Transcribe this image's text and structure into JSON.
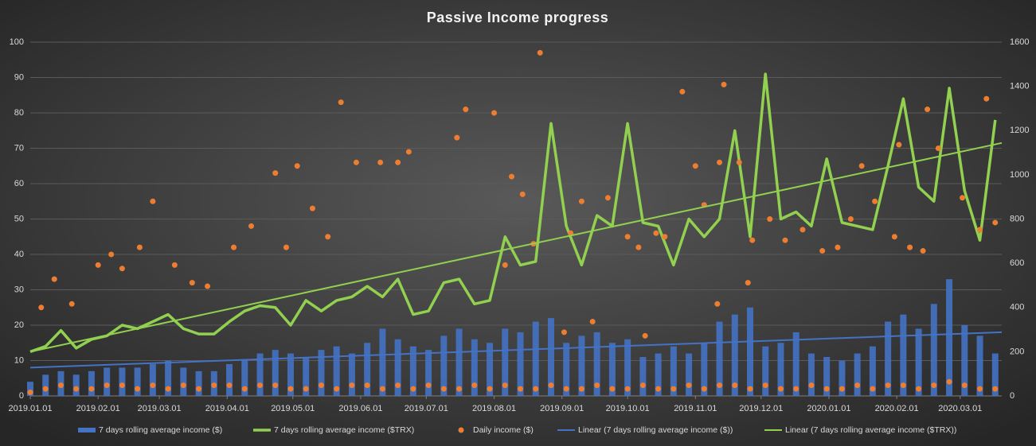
{
  "chart_data": {
    "type": "combo",
    "title": "Passive  Income  progress",
    "xlim": [
      "2019.01.01",
      "2020.03.20"
    ],
    "xticks": [
      "2019.01.01",
      "2019.02.01",
      "2019.03.01",
      "2019.04.01",
      "2019.05.01",
      "2019.06.01",
      "2019.07.01",
      "2019.08.01",
      "2019.09.01",
      "2019.10.01",
      "2019.11.01",
      "2019.12.01",
      "2020.01.01",
      "2020.02.01",
      "2020.03.01"
    ],
    "ylim": [
      0,
      100
    ],
    "yticks": [
      0,
      10,
      20,
      30,
      40,
      50,
      60,
      70,
      80,
      90,
      100
    ],
    "y2lim": [
      0,
      1600
    ],
    "y2ticks": [
      0,
      200,
      400,
      600,
      800,
      1000,
      1200,
      1400,
      1600
    ],
    "grid": true,
    "legend": "bottom",
    "series": [
      {
        "name": "7 days rolling average income ($)",
        "type": "bar",
        "color": "#4472c4",
        "x": [
          "2019.01.01",
          "2019.01.08",
          "2019.01.15",
          "2019.01.22",
          "2019.01.29",
          "2019.02.05",
          "2019.02.12",
          "2019.02.19",
          "2019.02.26",
          "2019.03.05",
          "2019.03.12",
          "2019.03.19",
          "2019.03.26",
          "2019.04.02",
          "2019.04.09",
          "2019.04.16",
          "2019.04.23",
          "2019.04.30",
          "2019.05.07",
          "2019.05.14",
          "2019.05.21",
          "2019.05.28",
          "2019.06.04",
          "2019.06.11",
          "2019.06.18",
          "2019.06.25",
          "2019.07.02",
          "2019.07.09",
          "2019.07.16",
          "2019.07.23",
          "2019.07.30",
          "2019.08.06",
          "2019.08.13",
          "2019.08.20",
          "2019.08.27",
          "2019.09.03",
          "2019.09.10",
          "2019.09.17",
          "2019.09.24",
          "2019.10.01",
          "2019.10.08",
          "2019.10.15",
          "2019.10.22",
          "2019.10.29",
          "2019.11.05",
          "2019.11.12",
          "2019.11.19",
          "2019.11.26",
          "2019.12.03",
          "2019.12.10",
          "2019.12.17",
          "2019.12.24",
          "2019.12.31",
          "2020.01.07",
          "2020.01.14",
          "2020.01.21",
          "2020.01.28",
          "2020.02.04",
          "2020.02.11",
          "2020.02.18",
          "2020.02.25",
          "2020.03.03",
          "2020.03.10",
          "2020.03.17"
        ],
        "values": [
          4,
          6,
          7,
          6,
          7,
          8,
          8,
          8,
          9,
          10,
          8,
          7,
          7,
          9,
          10,
          12,
          13,
          12,
          11,
          13,
          14,
          12,
          15,
          19,
          16,
          14,
          13,
          17,
          19,
          16,
          15,
          19,
          18,
          21,
          22,
          15,
          17,
          18,
          15,
          16,
          11,
          12,
          14,
          12,
          15,
          21,
          23,
          25,
          14,
          15,
          18,
          12,
          11,
          10,
          12,
          14,
          21,
          23,
          19,
          26,
          33,
          20,
          17,
          12
        ]
      },
      {
        "name": "7 days rolling average income ($TRX)",
        "type": "line",
        "axis": "y2",
        "color": "#92d050",
        "width": 3.5,
        "x": [
          "2019.01.01",
          "2019.01.08",
          "2019.01.15",
          "2019.01.22",
          "2019.01.29",
          "2019.02.05",
          "2019.02.12",
          "2019.02.19",
          "2019.02.26",
          "2019.03.05",
          "2019.03.12",
          "2019.03.19",
          "2019.03.26",
          "2019.04.02",
          "2019.04.09",
          "2019.04.16",
          "2019.04.23",
          "2019.04.30",
          "2019.05.07",
          "2019.05.14",
          "2019.05.21",
          "2019.05.28",
          "2019.06.04",
          "2019.06.11",
          "2019.06.18",
          "2019.06.25",
          "2019.07.02",
          "2019.07.09",
          "2019.07.16",
          "2019.07.23",
          "2019.07.30",
          "2019.08.06",
          "2019.08.13",
          "2019.08.20",
          "2019.08.27",
          "2019.09.03",
          "2019.09.10",
          "2019.09.17",
          "2019.09.24",
          "2019.10.01",
          "2019.10.08",
          "2019.10.15",
          "2019.10.22",
          "2019.10.29",
          "2019.11.05",
          "2019.11.12",
          "2019.11.19",
          "2019.11.26",
          "2019.12.03",
          "2019.12.10",
          "2019.12.17",
          "2019.12.24",
          "2019.12.31",
          "2020.01.07",
          "2020.01.14",
          "2020.01.21",
          "2020.01.28",
          "2020.02.04",
          "2020.02.11",
          "2020.02.18",
          "2020.02.25",
          "2020.03.03",
          "2020.03.10",
          "2020.03.17"
        ],
        "values": [
          200,
          224,
          296,
          216,
          256,
          272,
          320,
          304,
          336,
          368,
          304,
          280,
          280,
          336,
          384,
          408,
          400,
          320,
          432,
          384,
          432,
          448,
          496,
          448,
          528,
          368,
          384,
          512,
          528,
          416,
          432,
          720,
          592,
          608,
          1232,
          768,
          592,
          816,
          768,
          1232,
          784,
          768,
          592,
          800,
          720,
          800,
          1200,
          720,
          1456,
          800,
          832,
          768,
          1072,
          784,
          768,
          752,
          1040,
          1344,
          944,
          880,
          1392,
          928,
          704,
          1248
        ]
      },
      {
        "name": "Daily income ($)",
        "type": "scatter",
        "color": "#ed7d31",
        "x": [
          "2019.01.01",
          "2019.01.08",
          "2019.01.15",
          "2019.01.22",
          "2019.01.29",
          "2019.02.05",
          "2019.02.12",
          "2019.02.19",
          "2019.02.26",
          "2019.03.05",
          "2019.03.12",
          "2019.03.19",
          "2019.03.26",
          "2019.04.02",
          "2019.04.09",
          "2019.04.16",
          "2019.04.23",
          "2019.04.30",
          "2019.05.07",
          "2019.05.14",
          "2019.05.21",
          "2019.05.28",
          "2019.06.04",
          "2019.06.11",
          "2019.06.18",
          "2019.06.25",
          "2019.07.02",
          "2019.07.09",
          "2019.07.16",
          "2019.07.23",
          "2019.07.30",
          "2019.08.06",
          "2019.08.13",
          "2019.08.20",
          "2019.08.27",
          "2019.09.03",
          "2019.09.10",
          "2019.09.17",
          "2019.09.24",
          "2019.10.01",
          "2019.10.08",
          "2019.10.15",
          "2019.10.22",
          "2019.10.29",
          "2019.11.05",
          "2019.11.12",
          "2019.11.19",
          "2019.11.26",
          "2019.12.03",
          "2019.12.10",
          "2019.12.17",
          "2019.12.24",
          "2019.12.31",
          "2020.01.07",
          "2020.01.14",
          "2020.01.21",
          "2020.01.28",
          "2020.02.04",
          "2020.02.11",
          "2020.02.18",
          "2020.02.25",
          "2020.03.03",
          "2020.03.10",
          "2020.03.17",
          "2019.01.06",
          "2019.01.12",
          "2019.01.20",
          "2019.02.01",
          "2019.02.07",
          "2019.02.12",
          "2019.02.20",
          "2019.02.26",
          "2019.03.08",
          "2019.03.16",
          "2019.03.23",
          "2019.04.04",
          "2019.04.12",
          "2019.04.23",
          "2019.04.28",
          "2019.05.03",
          "2019.05.10",
          "2019.05.17",
          "2019.05.23",
          "2019.05.30",
          "2019.06.10",
          "2019.06.18",
          "2019.06.23",
          "2019.07.15",
          "2019.07.19",
          "2019.08.01",
          "2019.08.09",
          "2019.08.14",
          "2019.08.22",
          "2019.09.05",
          "2019.09.10",
          "2019.09.22",
          "2019.10.01",
          "2019.10.06",
          "2019.10.14",
          "2019.10.18",
          "2019.10.26",
          "2019.11.01",
          "2019.11.05",
          "2019.11.12",
          "2019.11.14",
          "2019.11.21",
          "2019.11.27",
          "2019.12.05",
          "2019.12.12",
          "2019.12.20",
          "2019.12.29",
          "2020.01.05",
          "2020.01.11",
          "2020.01.16",
          "2020.01.22",
          "2020.01.31",
          "2020.02.02",
          "2020.02.07",
          "2020.02.13",
          "2020.02.15",
          "2020.02.20",
          "2020.03.02",
          "2020.03.10",
          "2020.03.13",
          "2020.03.17",
          "2019.08.06",
          "2019.08.19",
          "2019.09.02",
          "2019.09.15",
          "2019.10.09",
          "2019.11.11",
          "2019.11.25"
        ],
        "values": [
          1,
          2,
          3,
          2,
          2,
          3,
          3,
          2,
          3,
          2,
          3,
          2,
          3,
          3,
          2,
          3,
          3,
          2,
          2,
          3,
          2,
          3,
          3,
          2,
          3,
          2,
          3,
          2,
          2,
          3,
          2,
          3,
          2,
          2,
          3,
          2,
          2,
          3,
          2,
          2,
          3,
          2,
          2,
          3,
          2,
          3,
          3,
          2,
          3,
          2,
          2,
          3,
          2,
          2,
          3,
          2,
          3,
          3,
          2,
          3,
          4,
          3,
          2,
          2,
          25,
          33,
          26,
          37,
          40,
          36,
          42,
          55,
          37,
          32,
          31,
          42,
          48,
          63,
          42,
          65,
          53,
          45,
          83,
          66,
          66,
          66,
          69,
          73,
          81,
          80,
          62,
          57,
          97,
          46,
          55,
          56,
          45,
          42,
          46,
          45,
          86,
          65,
          54,
          66,
          88,
          66,
          44,
          50,
          44,
          47,
          41,
          42,
          50,
          65,
          55,
          45,
          71,
          42,
          41,
          81,
          70,
          56,
          47,
          84,
          49,
          37,
          43,
          18,
          21,
          17,
          26,
          32
        ]
      },
      {
        "name": "Linear (7 days rolling average income ($))",
        "type": "line",
        "color": "#4472c4",
        "width": 2,
        "x": [
          "2019.01.01",
          "2020.03.20"
        ],
        "values": [
          8,
          18
        ]
      },
      {
        "name": "Linear (7 days rolling average income ($TRX))",
        "type": "line",
        "axis": "y2",
        "color": "#92d050",
        "width": 2,
        "x": [
          "2019.01.01",
          "2020.03.20"
        ],
        "values": [
          200,
          1144
        ]
      }
    ]
  }
}
